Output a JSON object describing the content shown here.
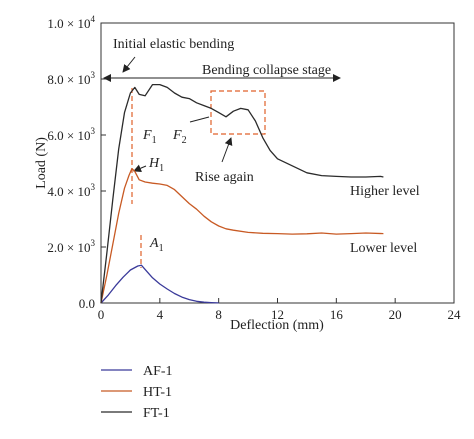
{
  "chart_data": {
    "type": "line",
    "xlabel": "Deflection (mm)",
    "ylabel": "Load (N)",
    "xlim": [
      0,
      24
    ],
    "ylim": [
      0,
      10000
    ],
    "x_ticks": [
      {
        "v": 0,
        "label": "0"
      },
      {
        "v": 4,
        "label": "4"
      },
      {
        "v": 8,
        "label": "8"
      },
      {
        "v": 12,
        "label": "12"
      },
      {
        "v": 16,
        "label": "16"
      },
      {
        "v": 20,
        "label": "20"
      },
      {
        "v": 24,
        "label": "24"
      }
    ],
    "y_ticks": [
      {
        "v": 0,
        "label": "0.0"
      },
      {
        "v": 2000,
        "mant": "2.0",
        "exp": "3"
      },
      {
        "v": 4000,
        "mant": "4.0",
        "exp": "3"
      },
      {
        "v": 6000,
        "mant": "6.0",
        "exp": "3"
      },
      {
        "v": 8000,
        "mant": "8.0",
        "exp": "3"
      },
      {
        "v": 10000,
        "mant": "1.0",
        "exp": "4"
      }
    ],
    "series": [
      {
        "name": "AF-1",
        "color": "#3a3a9a",
        "points": [
          [
            0,
            0
          ],
          [
            0.5,
            290
          ],
          [
            1.0,
            620
          ],
          [
            1.5,
            920
          ],
          [
            2.0,
            1180
          ],
          [
            2.5,
            1320
          ],
          [
            2.75,
            1350
          ],
          [
            3.0,
            1200
          ],
          [
            3.5,
            900
          ],
          [
            4.0,
            680
          ],
          [
            4.5,
            500
          ],
          [
            5.0,
            340
          ],
          [
            5.5,
            210
          ],
          [
            6.0,
            120
          ],
          [
            6.5,
            60
          ],
          [
            7.0,
            30
          ],
          [
            7.5,
            15
          ],
          [
            8.0,
            5
          ]
        ]
      },
      {
        "name": "HT-1",
        "color": "#c85a24",
        "points": [
          [
            0,
            0
          ],
          [
            0.4,
            1000
          ],
          [
            0.8,
            2100
          ],
          [
            1.2,
            3200
          ],
          [
            1.6,
            4100
          ],
          [
            1.9,
            4550
          ],
          [
            2.1,
            4800
          ],
          [
            2.3,
            4700
          ],
          [
            2.6,
            4400
          ],
          [
            3.0,
            4320
          ],
          [
            3.5,
            4280
          ],
          [
            4.0,
            4250
          ],
          [
            4.5,
            4200
          ],
          [
            5.0,
            4050
          ],
          [
            5.5,
            3800
          ],
          [
            6.0,
            3550
          ],
          [
            6.5,
            3350
          ],
          [
            7.0,
            3100
          ],
          [
            7.5,
            2900
          ],
          [
            8.0,
            2750
          ],
          [
            8.5,
            2650
          ],
          [
            9.0,
            2600
          ],
          [
            10.0,
            2520
          ],
          [
            11.0,
            2490
          ],
          [
            12.0,
            2480
          ],
          [
            13.0,
            2460
          ],
          [
            14.0,
            2470
          ],
          [
            15.0,
            2500
          ],
          [
            16.0,
            2460
          ],
          [
            17.0,
            2480
          ],
          [
            18.0,
            2500
          ],
          [
            19.2,
            2480
          ]
        ]
      },
      {
        "name": "FT-1",
        "color": "#2b2b2b",
        "points": [
          [
            0,
            0
          ],
          [
            0.4,
            1800
          ],
          [
            0.8,
            3700
          ],
          [
            1.2,
            5500
          ],
          [
            1.6,
            6800
          ],
          [
            2.0,
            7500
          ],
          [
            2.3,
            7700
          ],
          [
            2.6,
            7450
          ],
          [
            3.0,
            7400
          ],
          [
            3.5,
            7800
          ],
          [
            4.0,
            7800
          ],
          [
            4.5,
            7700
          ],
          [
            5.0,
            7500
          ],
          [
            5.5,
            7350
          ],
          [
            6.0,
            7300
          ],
          [
            6.5,
            7150
          ],
          [
            7.0,
            7050
          ],
          [
            7.5,
            6950
          ],
          [
            8.0,
            6800
          ],
          [
            8.5,
            6650
          ],
          [
            9.0,
            6850
          ],
          [
            9.5,
            6950
          ],
          [
            10.0,
            6900
          ],
          [
            10.5,
            6500
          ],
          [
            11.0,
            5900
          ],
          [
            11.5,
            5450
          ],
          [
            12.0,
            5150
          ],
          [
            13.0,
            4900
          ],
          [
            14.0,
            4650
          ],
          [
            15.0,
            4550
          ],
          [
            16.0,
            4520
          ],
          [
            17.0,
            4500
          ],
          [
            18.0,
            4500
          ],
          [
            19.0,
            4520
          ],
          [
            19.2,
            4500
          ]
        ]
      }
    ],
    "annotations": {
      "initial_elastic": "Initial elastic bending",
      "collapse": "Bending collapse stage",
      "rise_again": "Rise again",
      "higher_level": "Higher level",
      "lower_level": "Lower level",
      "F1": {
        "main": "F",
        "sub": "1"
      },
      "F2": {
        "main": "F",
        "sub": "2"
      },
      "H1": {
        "main": "H",
        "sub": "1"
      },
      "A1": {
        "main": "A",
        "sub": "1"
      }
    },
    "legend_position": "bottom-left",
    "grid": false
  }
}
